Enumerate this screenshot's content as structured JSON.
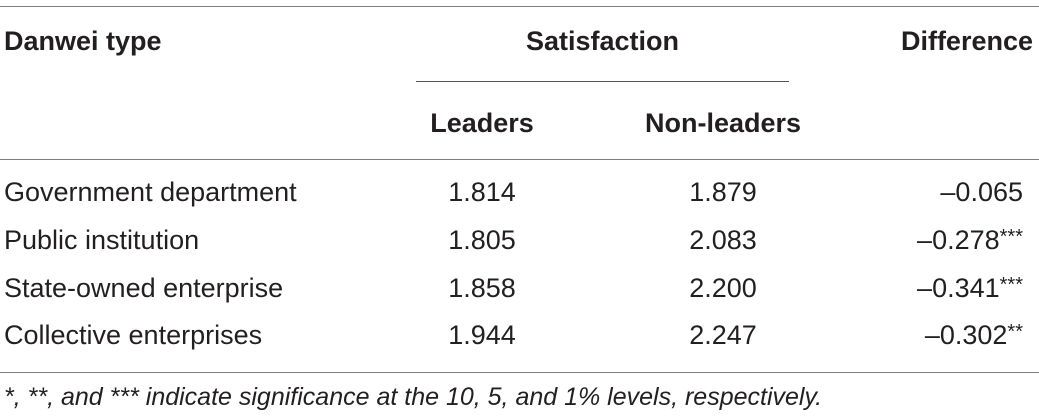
{
  "table": {
    "headers": {
      "danwei_type": "Danwei type",
      "satisfaction": "Satisfaction",
      "difference": "Difference",
      "leaders": "Leaders",
      "non_leaders": "Non-leaders"
    },
    "rows": [
      {
        "type": "Government department",
        "leaders": "1.814",
        "non_leaders": "1.879",
        "difference": "–0.065",
        "sig": ""
      },
      {
        "type": "Public institution",
        "leaders": "1.805",
        "non_leaders": "2.083",
        "difference": "–0.278",
        "sig": "***"
      },
      {
        "type": "State-owned enterprise",
        "leaders": "1.858",
        "non_leaders": "2.200",
        "difference": "–0.341",
        "sig": "***"
      },
      {
        "type": "Collective enterprises",
        "leaders": "1.944",
        "non_leaders": "2.247",
        "difference": "–0.302",
        "sig": "**"
      }
    ],
    "footnote": "*, **, and *** indicate significance at the 10, 5, and 1% levels, respectively."
  }
}
